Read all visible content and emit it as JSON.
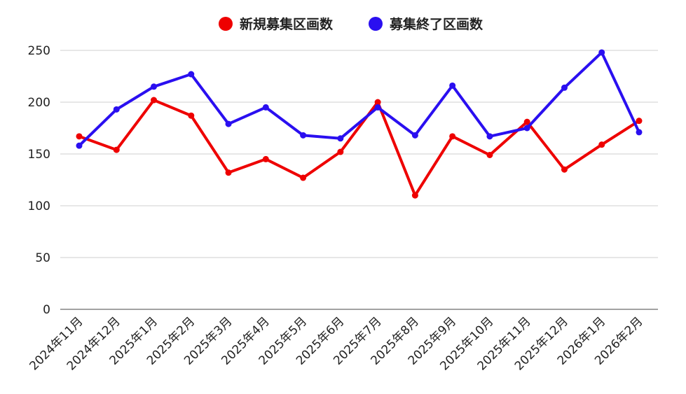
{
  "chart_data": {
    "type": "line",
    "title": "",
    "xlabel": "",
    "ylabel": "",
    "categories": [
      "2024年11月",
      "2024年12月",
      "2025年1月",
      "2025年2月",
      "2025年3月",
      "2025年4月",
      "2025年5月",
      "2025年6月",
      "2025年7月",
      "2025年8月",
      "2025年9月",
      "2025年10月",
      "2025年11月",
      "2025年12月",
      "2026年1月",
      "2026年2月"
    ],
    "series": [
      {
        "name": "新規募集区画数",
        "color": "#ee0000",
        "values": [
          167,
          154,
          202,
          187,
          132,
          145,
          127,
          152,
          200,
          110,
          167,
          149,
          181,
          135,
          159,
          182
        ]
      },
      {
        "name": "募集終了区画数",
        "color": "#2a0ff0",
        "values": [
          158,
          193,
          215,
          227,
          179,
          195,
          168,
          165,
          195,
          168,
          216,
          167,
          175,
          214,
          248,
          171
        ]
      }
    ],
    "ylim": [
      0,
      250
    ],
    "yticks": [
      0,
      50,
      100,
      150,
      200,
      250
    ],
    "grid": true,
    "legend_position": "top-center"
  }
}
